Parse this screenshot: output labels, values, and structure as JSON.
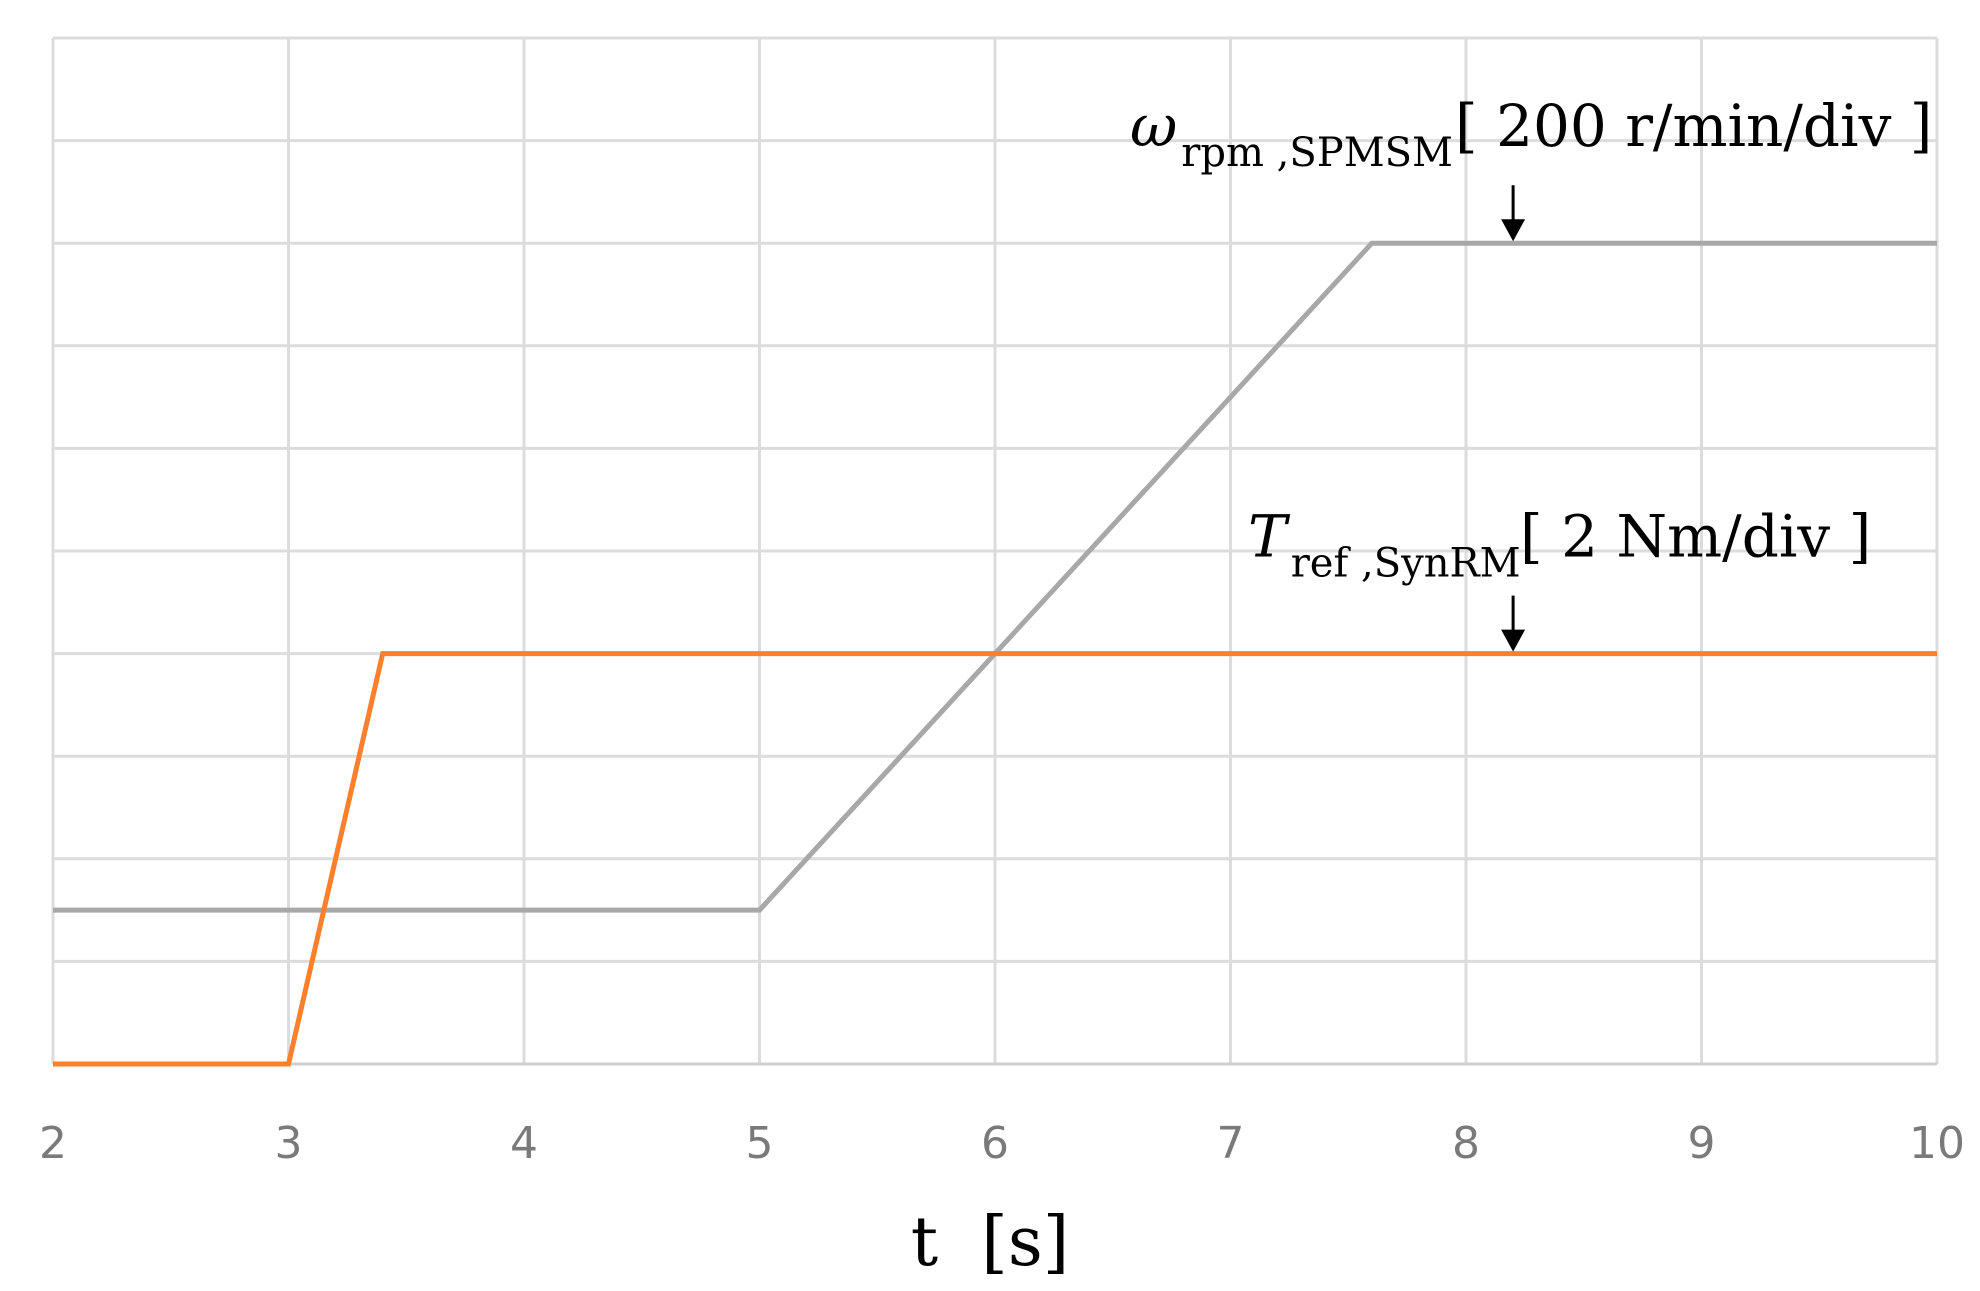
{
  "chart_data": {
    "type": "line",
    "title": "",
    "xlabel": "t  [s]",
    "ylabel": "",
    "xlim": [
      2,
      10
    ],
    "ylim": [
      0,
      10
    ],
    "x_ticks": [
      "2",
      "3",
      "4",
      "5",
      "6",
      "7",
      "8",
      "9",
      "10"
    ],
    "y_grid_divisions": 10,
    "grid": true,
    "legend": "none",
    "series": [
      {
        "color": "#a8a8a8",
        "points": [
          [
            2,
            1.5
          ],
          [
            5,
            1.5
          ],
          [
            7.6,
            8
          ],
          [
            10,
            8
          ]
        ]
      },
      {
        "color": "#ff7f2a",
        "points": [
          [
            2,
            0
          ],
          [
            3,
            0
          ],
          [
            3.4,
            4
          ],
          [
            10,
            4
          ]
        ]
      }
    ],
    "annotations": [
      {
        "symbol": "ω",
        "subscript": "rpm ,SPMSM",
        "scale": "[ 200 r/min/div ]",
        "arrow_to": [
          8.2,
          8
        ]
      },
      {
        "symbol": "T",
        "subscript": "ref ,SynRM",
        "scale": "[ 2 Nm/div ]",
        "arrow_to": [
          8.2,
          4
        ]
      }
    ]
  }
}
